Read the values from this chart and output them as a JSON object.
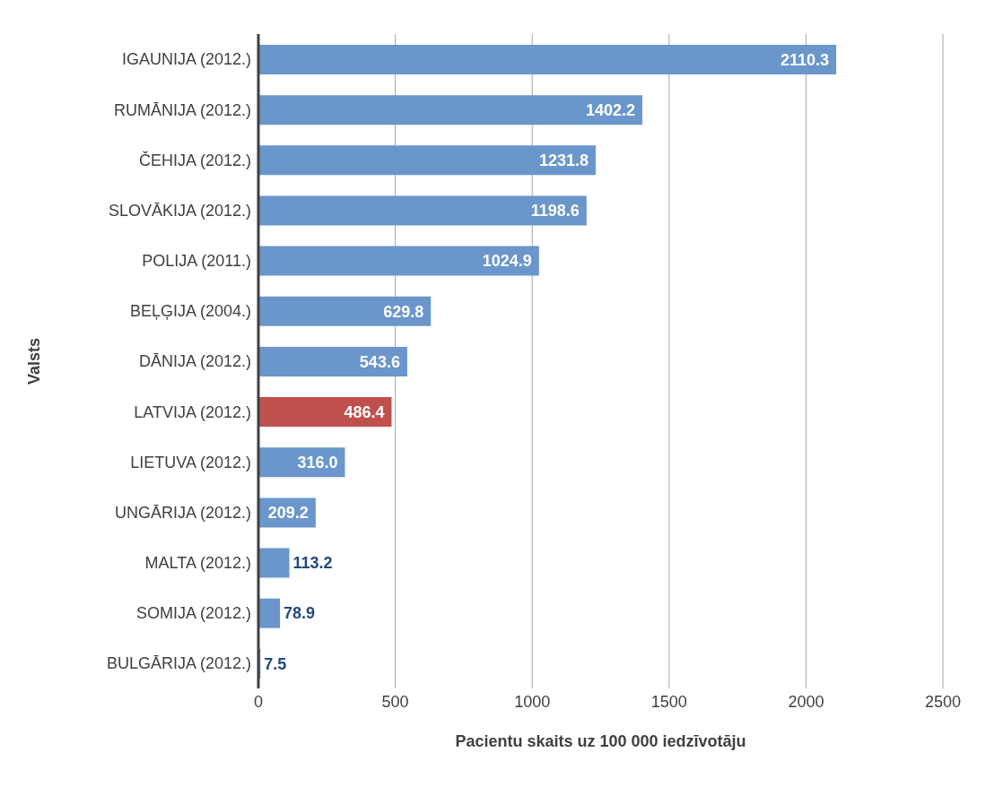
{
  "chart_data": {
    "type": "bar",
    "orientation": "horizontal",
    "xlabel": "Pacientu skaits uz 100 000 iedzīvotāju",
    "ylabel": "Valsts",
    "categories": [
      "IGAUNIJA (2012.)",
      "RUMĀNIJA (2012.)",
      "ČEHIJA (2012.)",
      "SLOVĀKIJA (2012.)",
      "POLIJA (2011.)",
      "BEĻĢIJA (2004.)",
      "DĀNIJA (2012.)",
      "LATVIJA (2012.)",
      "LIETUVA (2012.)",
      "UNGĀRIJA (2012.)",
      "MALTA (2012.)",
      "SOMIJA (2012.)",
      "BULGĀRIJA (2012.)"
    ],
    "values": [
      2110.3,
      1402.2,
      1231.8,
      1198.6,
      1024.9,
      629.8,
      543.6,
      486.4,
      316.0,
      209.2,
      113.2,
      78.9,
      7.5
    ],
    "value_labels": [
      "2110.3",
      "1402.2",
      "1231.8",
      "1198.6",
      "1024.9",
      "629.8",
      "543.6",
      "486.4",
      "316.0",
      "209.2",
      "113.2",
      "78.9",
      "7.5"
    ],
    "colors": [
      "#6a96cb",
      "#6a96cb",
      "#6a96cb",
      "#6a96cb",
      "#6a96cb",
      "#6a96cb",
      "#6a96cb",
      "#c0504d",
      "#6a96cb",
      "#6a96cb",
      "#6a96cb",
      "#6a96cb",
      "#6a96cb"
    ],
    "xlim": [
      0,
      2500
    ],
    "xticks": [
      0,
      500,
      1000,
      1500,
      2000,
      2500
    ],
    "grid": "x"
  }
}
